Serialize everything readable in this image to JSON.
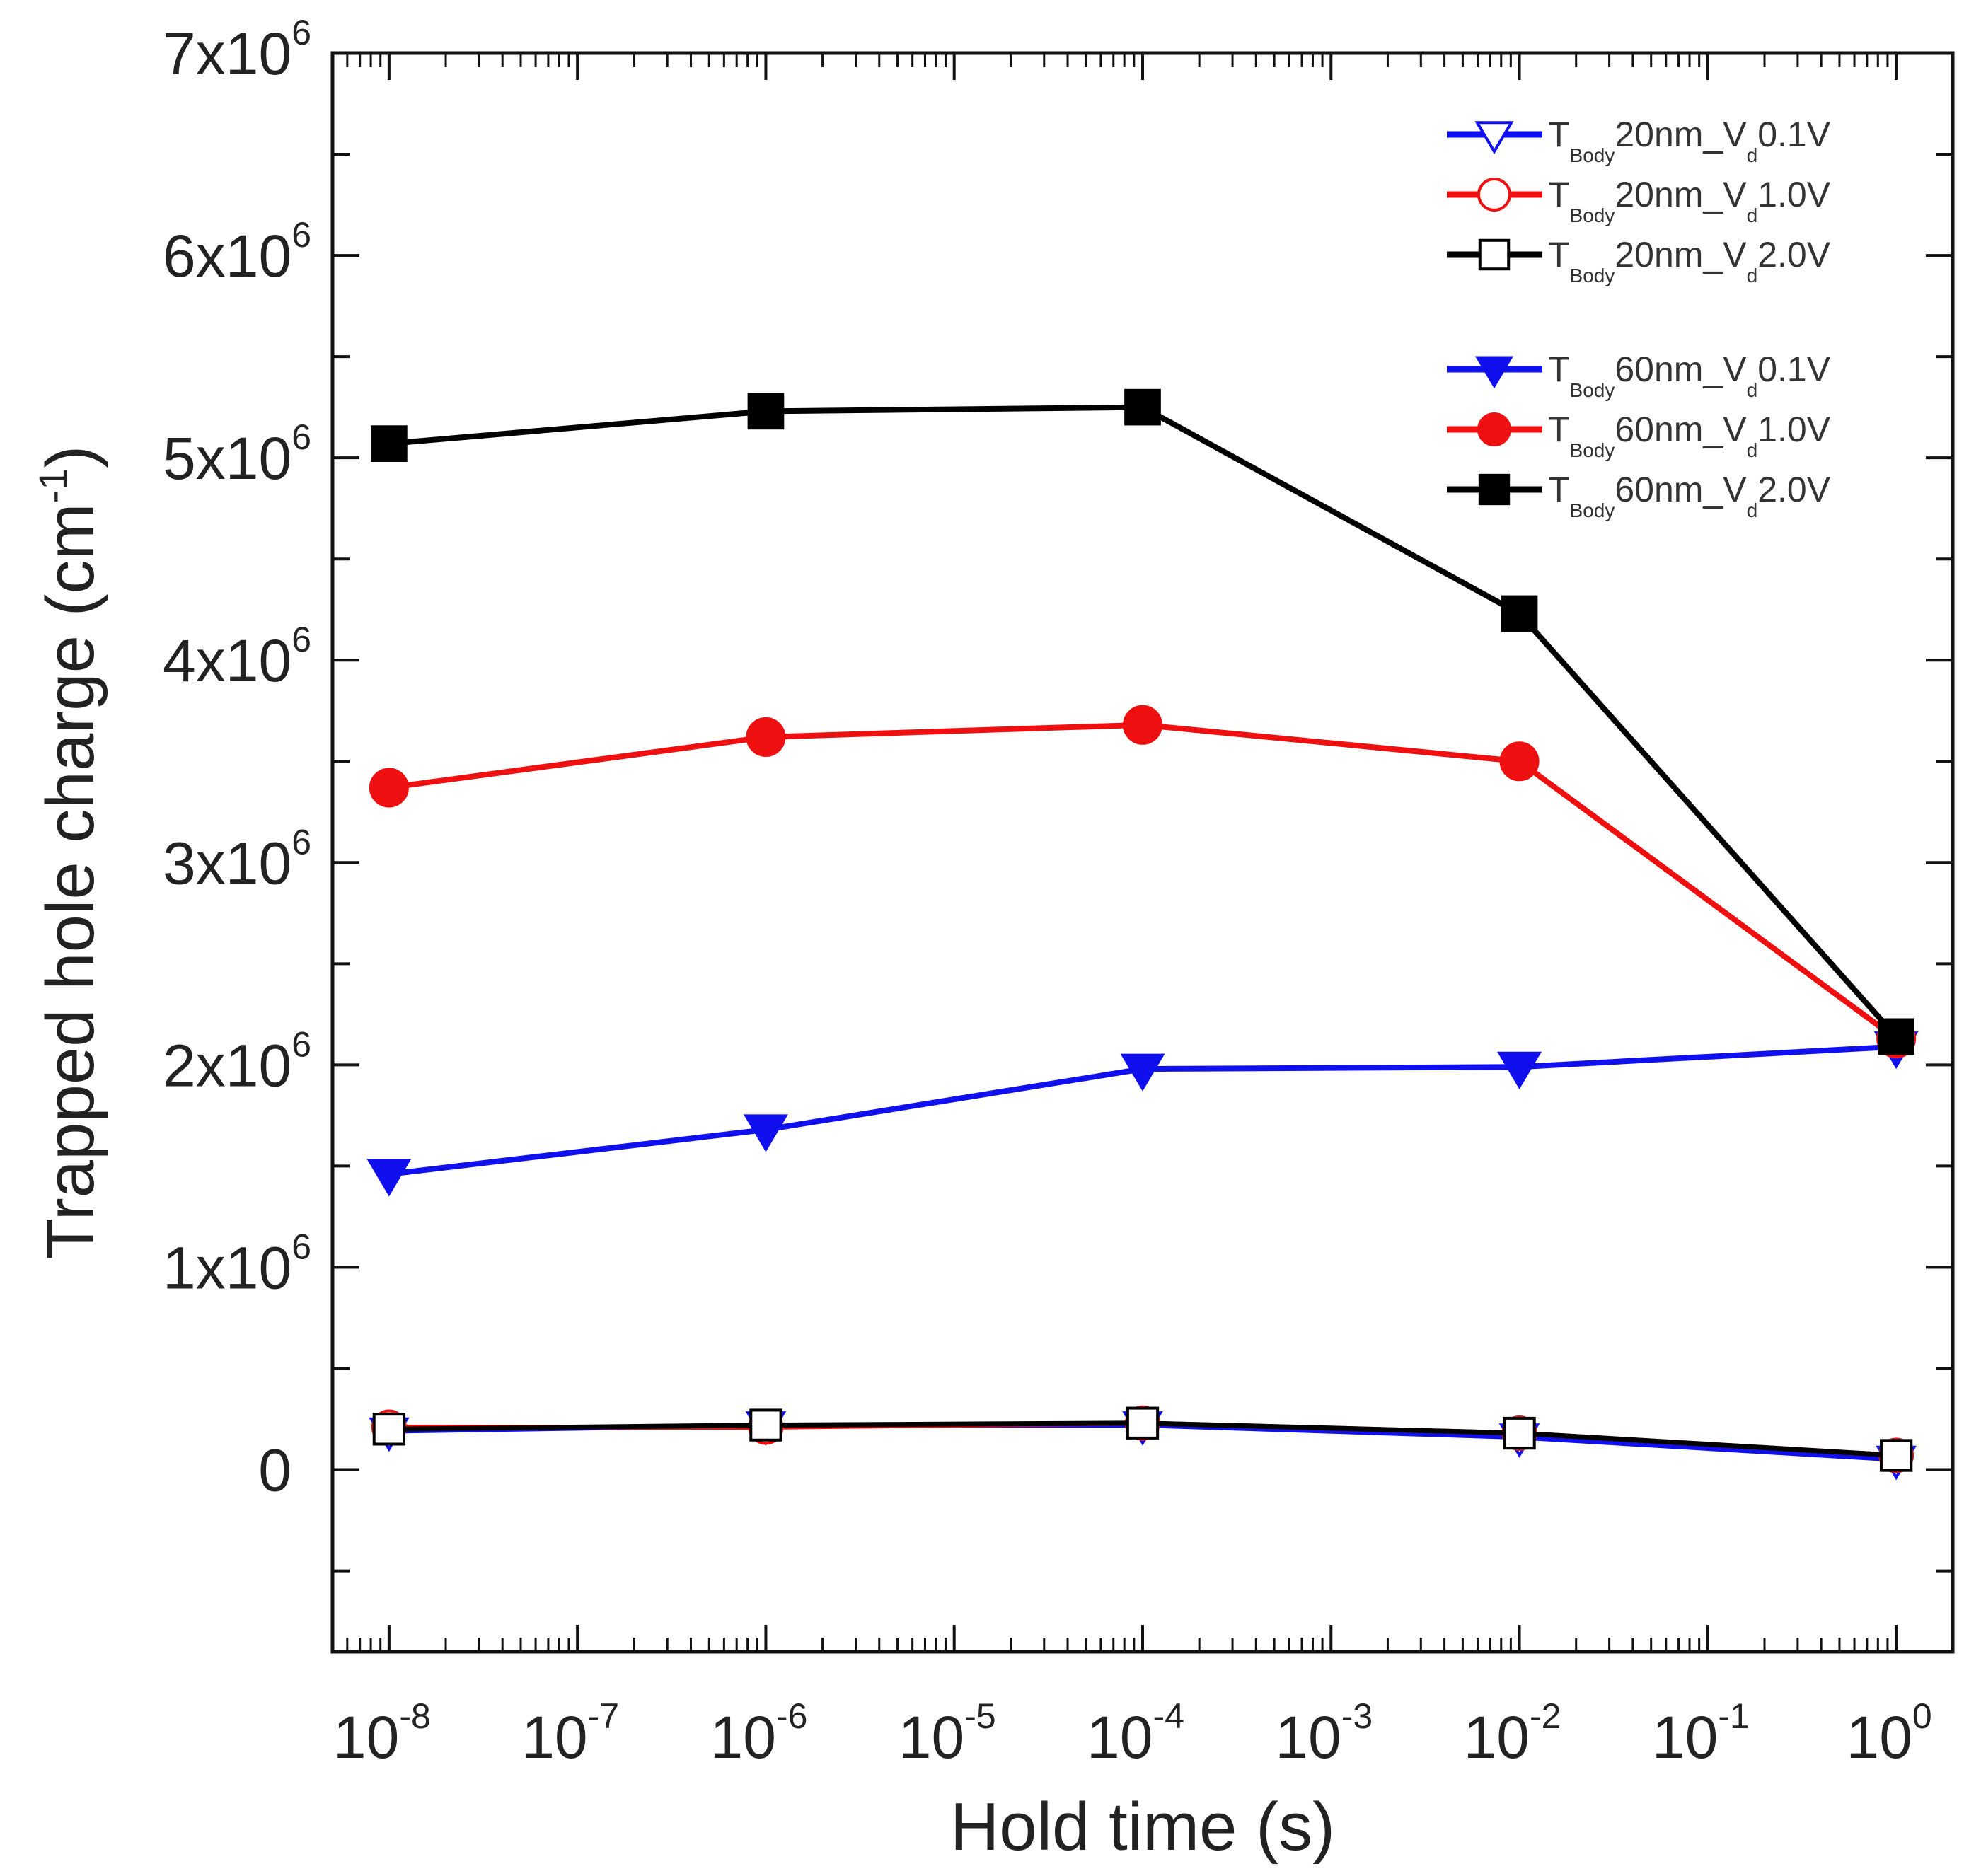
{
  "chart_data": {
    "type": "line",
    "title": "",
    "xlabel": "Hold time (s)",
    "ylabel": "Trapped hole charge (cm",
    "ylabel_exp": "-1",
    "ylabel_close": ")",
    "xscale": "log",
    "xlim_log10": [
      -8.3,
      0.3
    ],
    "ylim": [
      -900000,
      7000000
    ],
    "x_ticks": [
      {
        "base": "10",
        "exp": "-8"
      },
      {
        "base": "10",
        "exp": "-7"
      },
      {
        "base": "10",
        "exp": "-6"
      },
      {
        "base": "10",
        "exp": "-5"
      },
      {
        "base": "10",
        "exp": "-4"
      },
      {
        "base": "10",
        "exp": "-3"
      },
      {
        "base": "10",
        "exp": "-2"
      },
      {
        "base": "10",
        "exp": "-1"
      },
      {
        "base": "10",
        "exp": "0"
      }
    ],
    "y_ticks": [
      {
        "value": 0,
        "mant": "0",
        "exp": ""
      },
      {
        "value": 1000000,
        "mant": "1x10",
        "exp": "6"
      },
      {
        "value": 2000000,
        "mant": "2x10",
        "exp": "6"
      },
      {
        "value": 3000000,
        "mant": "3x10",
        "exp": "6"
      },
      {
        "value": 4000000,
        "mant": "4x10",
        "exp": "6"
      },
      {
        "value": 5000000,
        "mant": "5x10",
        "exp": "6"
      },
      {
        "value": 6000000,
        "mant": "6x10",
        "exp": "6"
      },
      {
        "value": 7000000,
        "mant": "7x10",
        "exp": "6"
      }
    ],
    "x": [
      1e-08,
      1e-06,
      0.0001,
      0.01,
      1
    ],
    "legend_position": "top-right",
    "series": [
      {
        "name": "T_Body 20nm_V_d 0.1V",
        "label_parts": [
          "T",
          "Body",
          "20nm_V",
          "d",
          "0.1V"
        ],
        "color": "#1010ee",
        "marker": "triangle-down",
        "filled": false,
        "values": [
          190000,
          220000,
          220000,
          160000,
          50000
        ]
      },
      {
        "name": "T_Body 20nm_V_d 1.0V",
        "label_parts": [
          "T",
          "Body",
          "20nm_V",
          "d",
          "1.0V"
        ],
        "color": "#ee1010",
        "marker": "circle",
        "filled": false,
        "values": [
          210000,
          210000,
          230000,
          180000,
          70000
        ]
      },
      {
        "name": "T_Body 20nm_V_d 2.0V",
        "label_parts": [
          "T",
          "Body",
          "20nm_V",
          "d",
          "2.0V"
        ],
        "color": "#000000",
        "marker": "square",
        "filled": false,
        "values": [
          200000,
          220000,
          230000,
          180000,
          70000
        ]
      },
      {
        "name": "T_Body 60nm_V_d 0.1V",
        "label_parts": [
          "T",
          "Body",
          "60nm_V",
          "d",
          "0.1V"
        ],
        "color": "#1010ee",
        "marker": "triangle-down",
        "filled": true,
        "values": [
          1460000,
          1680000,
          1980000,
          1990000,
          2090000
        ]
      },
      {
        "name": "T_Body 60nm_V_d 1.0V",
        "label_parts": [
          "T",
          "Body",
          "60nm_V",
          "d",
          "1.0V"
        ],
        "color": "#ee1010",
        "marker": "circle",
        "filled": true,
        "values": [
          3370000,
          3620000,
          3680000,
          3500000,
          2130000
        ]
      },
      {
        "name": "T_Body 60nm_V_d 2.0V",
        "label_parts": [
          "T",
          "Body",
          "60nm_V",
          "d",
          "2.0V"
        ],
        "color": "#000000",
        "marker": "square",
        "filled": true,
        "values": [
          5070000,
          5230000,
          5250000,
          4230000,
          2140000
        ]
      }
    ]
  }
}
